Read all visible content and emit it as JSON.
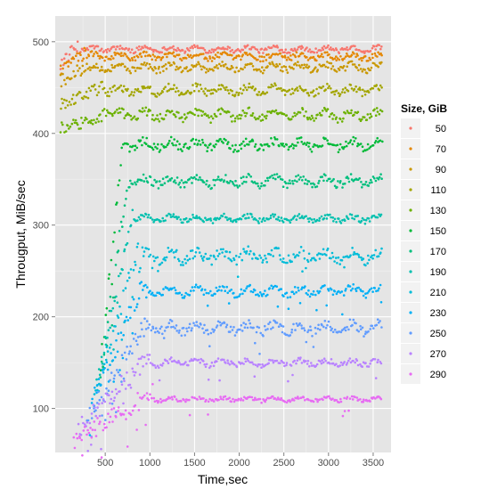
{
  "chart_data": {
    "type": "scatter",
    "xlabel": "Time,sec",
    "ylabel": "Througput, MiB/sec",
    "xlim": [
      -60,
      3700
    ],
    "ylim": [
      52,
      528
    ],
    "xticks": [
      500,
      1000,
      1500,
      2000,
      2500,
      3000,
      3500
    ],
    "xtick_labels": [
      "500",
      "1000",
      "1500",
      "2000",
      "2500",
      "3000",
      "3500"
    ],
    "yticks": [
      100,
      200,
      300,
      400,
      500
    ],
    "ytick_labels": [
      "100",
      "200",
      "300",
      "400",
      "500"
    ],
    "grid": true,
    "legend_position": "right",
    "legend_title": "Size, GiB",
    "series": [
      {
        "name": "50",
        "color": "#F8766D",
        "x_start": 0,
        "ramp_end": 200,
        "plateau": 492,
        "variation": 5
      },
      {
        "name": "70",
        "color": "#E58700",
        "x_start": 0,
        "ramp_end": 280,
        "plateau": 484,
        "variation": 6
      },
      {
        "name": "90",
        "color": "#C99800",
        "x_start": 0,
        "ramp_end": 350,
        "plateau": 472,
        "variation": 7
      },
      {
        "name": "110",
        "color": "#A3A500",
        "x_start": 0,
        "ramp_end": 500,
        "plateau": 447,
        "variation": 8
      },
      {
        "name": "130",
        "color": "#6BB100",
        "x_start": 0,
        "ramp_end": 600,
        "plateau": 420,
        "variation": 9
      },
      {
        "name": "150",
        "color": "#00BA38",
        "x_start": 450,
        "ramp_end": 700,
        "plateau": 388,
        "variation": 9
      },
      {
        "name": "170",
        "color": "#00BF7D",
        "x_start": 450,
        "ramp_end": 760,
        "plateau": 348,
        "variation": 9
      },
      {
        "name": "190",
        "color": "#00C0AF",
        "x_start": 400,
        "ramp_end": 820,
        "plateau": 307,
        "variation": 6
      },
      {
        "name": "210",
        "color": "#00BCD8",
        "x_start": 380,
        "ramp_end": 870,
        "plateau": 266,
        "variation": 12
      },
      {
        "name": "230",
        "color": "#00B0F6",
        "x_start": 330,
        "ramp_end": 920,
        "plateau": 228,
        "variation": 8
      },
      {
        "name": "250",
        "color": "#619CFF",
        "x_start": 300,
        "ramp_end": 980,
        "plateau": 188,
        "variation": 10
      },
      {
        "name": "270",
        "color": "#B983FF",
        "x_start": 200,
        "ramp_end": 1000,
        "plateau": 150,
        "variation": 6
      },
      {
        "name": "290",
        "color": "#E76BF3",
        "x_start": 150,
        "ramp_end": 1050,
        "plateau": 110,
        "variation": 4
      }
    ]
  }
}
